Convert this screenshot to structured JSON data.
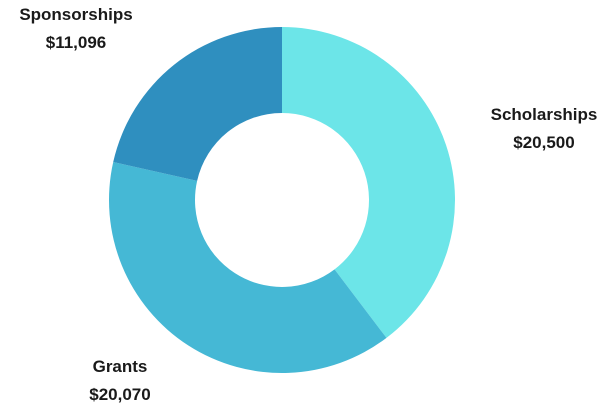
{
  "chart_data": {
    "type": "pie",
    "variant": "donut",
    "slices": [
      {
        "name": "Scholarships",
        "value": 20500,
        "value_label": "$20,500",
        "color": "#6ce5e8"
      },
      {
        "name": "Grants",
        "value": 20070,
        "value_label": "$20,070",
        "color": "#45b8d5"
      },
      {
        "name": "Sponsorships",
        "value": 11096,
        "value_label": "$11,096",
        "color": "#2f8fbf"
      }
    ],
    "start_angle_deg": 0,
    "direction": "clockwise",
    "legend": "none"
  }
}
